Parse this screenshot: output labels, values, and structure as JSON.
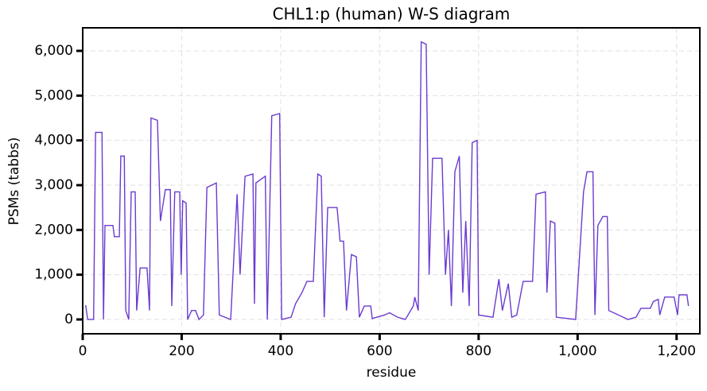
{
  "chart_data": {
    "type": "line",
    "title": "CHL1:p (human) W-S diagram",
    "xlabel": "residue",
    "ylabel": "PSMs (tabbs)",
    "x": [
      6,
      10,
      22,
      26,
      39,
      42,
      45,
      61,
      64,
      74,
      77,
      84,
      87,
      93,
      98,
      106,
      109,
      116,
      130,
      135,
      138,
      151,
      157,
      167,
      177,
      180,
      186,
      196,
      199,
      202,
      209,
      212,
      220,
      228,
      235,
      244,
      251,
      270,
      276,
      299,
      312,
      318,
      328,
      344,
      347,
      350,
      369,
      373,
      382,
      398,
      402,
      421,
      430,
      443,
      453,
      466,
      475,
      482,
      488,
      495,
      514,
      520,
      527,
      533,
      543,
      553,
      559,
      569,
      582,
      585,
      610,
      620,
      636,
      652,
      668,
      671,
      678,
      684,
      694,
      700,
      707,
      726,
      733,
      739,
      745,
      752,
      761,
      768,
      774,
      781,
      787,
      797,
      800,
      829,
      841,
      848,
      860,
      867,
      877,
      890,
      909,
      916,
      935,
      938,
      945,
      954,
      957,
      996,
      1012,
      1019,
      1031,
      1035,
      1041,
      1051,
      1060,
      1063,
      1102,
      1118,
      1128,
      1147,
      1153,
      1163,
      1166,
      1176,
      1195,
      1202,
      1205,
      1221,
      1224
    ],
    "series": [
      {
        "name": "PSMs",
        "color": "#6a3bd1",
        "values": [
          320,
          0,
          0,
          4180,
          4180,
          0,
          2100,
          2100,
          1850,
          1850,
          3650,
          3650,
          200,
          0,
          2850,
          2850,
          200,
          1150,
          1150,
          200,
          4500,
          4450,
          2200,
          2900,
          2900,
          300,
          2850,
          2850,
          1000,
          2650,
          2600,
          0,
          200,
          200,
          0,
          100,
          2950,
          3050,
          100,
          0,
          2800,
          1000,
          3200,
          3250,
          350,
          3050,
          3200,
          0,
          4550,
          4600,
          0,
          50,
          350,
          600,
          850,
          850,
          3250,
          3200,
          50,
          2500,
          2500,
          1750,
          1750,
          200,
          1450,
          1400,
          50,
          300,
          300,
          20,
          100,
          150,
          50,
          0,
          300,
          500,
          200,
          6200,
          6150,
          1000,
          3600,
          3600,
          1000,
          2000,
          300,
          3300,
          3650,
          600,
          2200,
          300,
          3950,
          4000,
          100,
          50,
          900,
          200,
          800,
          50,
          100,
          850,
          850,
          2800,
          2850,
          600,
          2200,
          2150,
          50,
          0,
          2850,
          3300,
          3300,
          100,
          2100,
          2300,
          2300,
          200,
          0,
          50,
          250,
          250,
          400,
          450,
          100,
          500,
          500,
          100,
          550,
          550,
          300
        ]
      }
    ],
    "xlim": [
      0,
      1247
    ],
    "ylim": [
      -320,
      6515
    ],
    "xticks": [
      0,
      200,
      400,
      600,
      800,
      {
        "value": 1000,
        "label": "1,000"
      },
      {
        "value": 1200,
        "label": "1,200"
      }
    ],
    "yticks": [
      0,
      {
        "value": 1000,
        "label": "1,000"
      },
      {
        "value": 2000,
        "label": "2,000"
      },
      {
        "value": 3000,
        "label": "3,000"
      },
      {
        "value": 4000,
        "label": "4,000"
      },
      {
        "value": 5000,
        "label": "5,000"
      },
      {
        "value": 6000,
        "label": "6,000"
      }
    ],
    "grid": true
  }
}
